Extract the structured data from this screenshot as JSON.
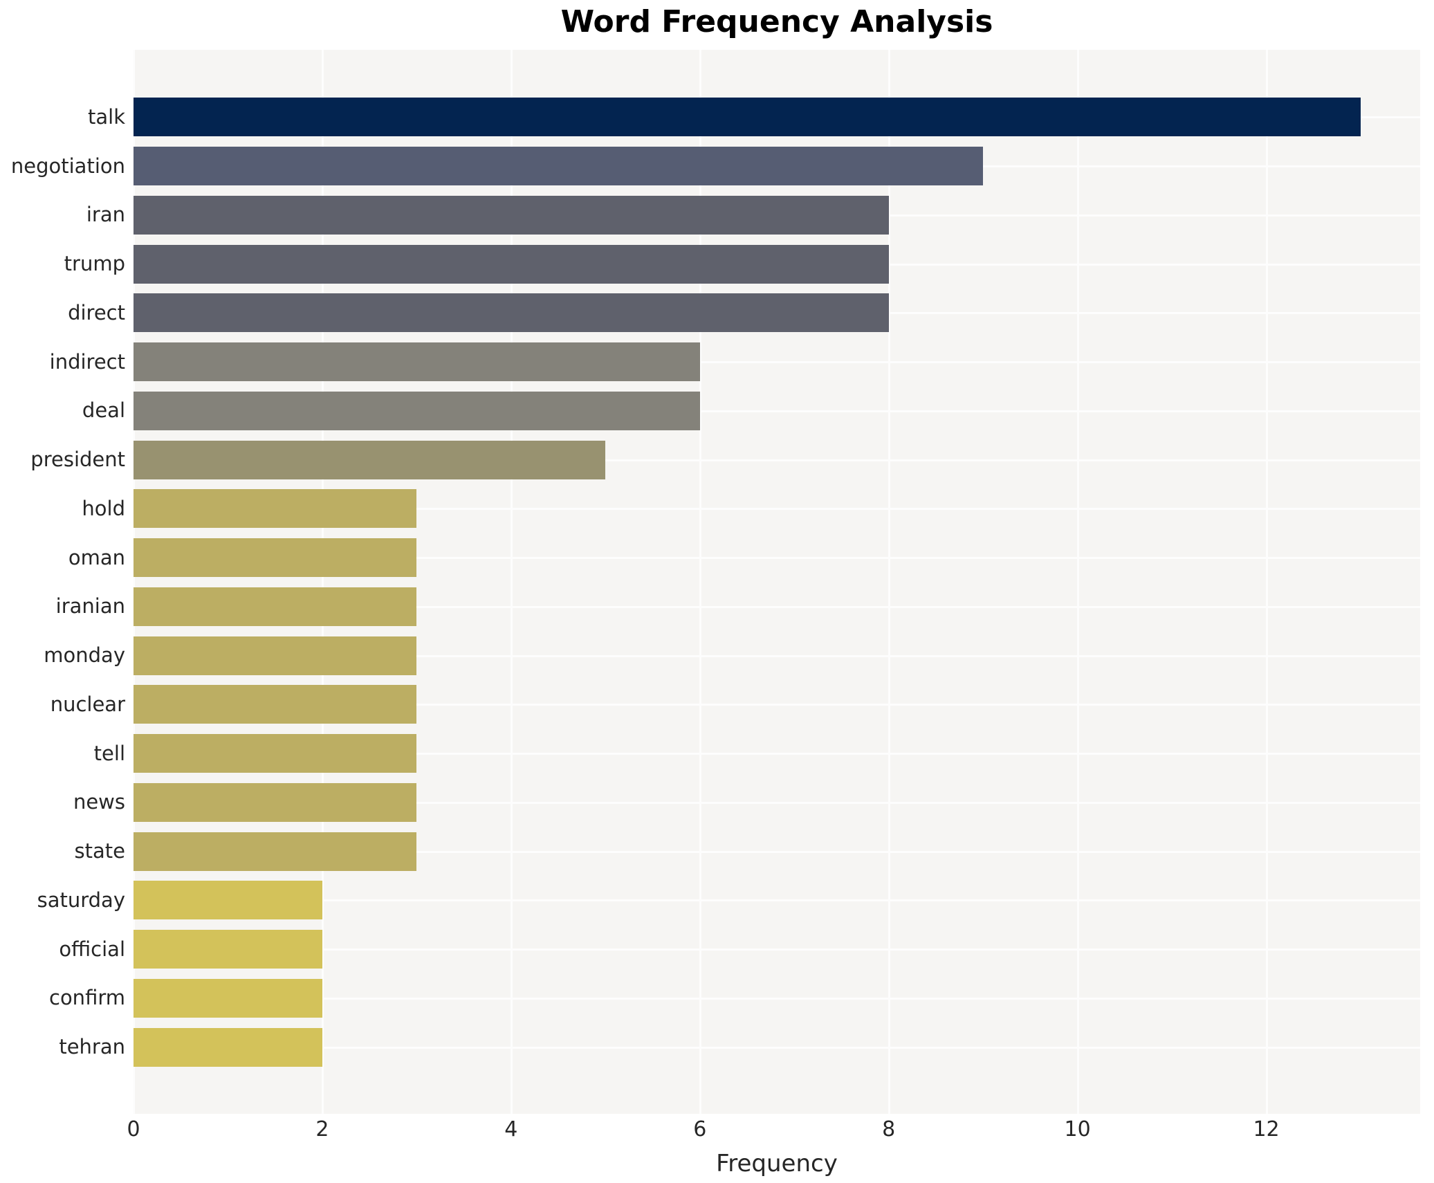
{
  "title": "Word Frequency Analysis",
  "chart_data": {
    "type": "bar",
    "orientation": "horizontal",
    "title": "Word Frequency Analysis",
    "xlabel": "Frequency",
    "ylabel": "",
    "categories": [
      "talk",
      "negotiation",
      "iran",
      "trump",
      "direct",
      "indirect",
      "deal",
      "president",
      "hold",
      "oman",
      "iranian",
      "monday",
      "nuclear",
      "tell",
      "news",
      "state",
      "saturday",
      "official",
      "confirm",
      "tehran"
    ],
    "values": [
      13,
      9,
      8,
      8,
      8,
      6,
      6,
      5,
      3,
      3,
      3,
      3,
      3,
      3,
      3,
      3,
      2,
      2,
      2,
      2
    ],
    "bar_colors": [
      "#032450",
      "#565d73",
      "#5f616c",
      "#5f616c",
      "#5f616c",
      "#84827a",
      "#84827a",
      "#989270",
      "#bcae63",
      "#bcae63",
      "#bcae63",
      "#bcae63",
      "#bcae63",
      "#bcae63",
      "#bcae63",
      "#bcae63",
      "#d3c25a",
      "#d3c25a",
      "#d3c25a",
      "#d3c25a"
    ],
    "xticks": [
      0,
      2,
      4,
      6,
      8,
      10,
      12
    ],
    "xlim": [
      0,
      13.63
    ],
    "grid": true,
    "legend_position": "none",
    "plot_background": "#f6f5f3",
    "grid_color": "#fdfdfd",
    "text_color": "#262626",
    "title_color": "#000000"
  }
}
